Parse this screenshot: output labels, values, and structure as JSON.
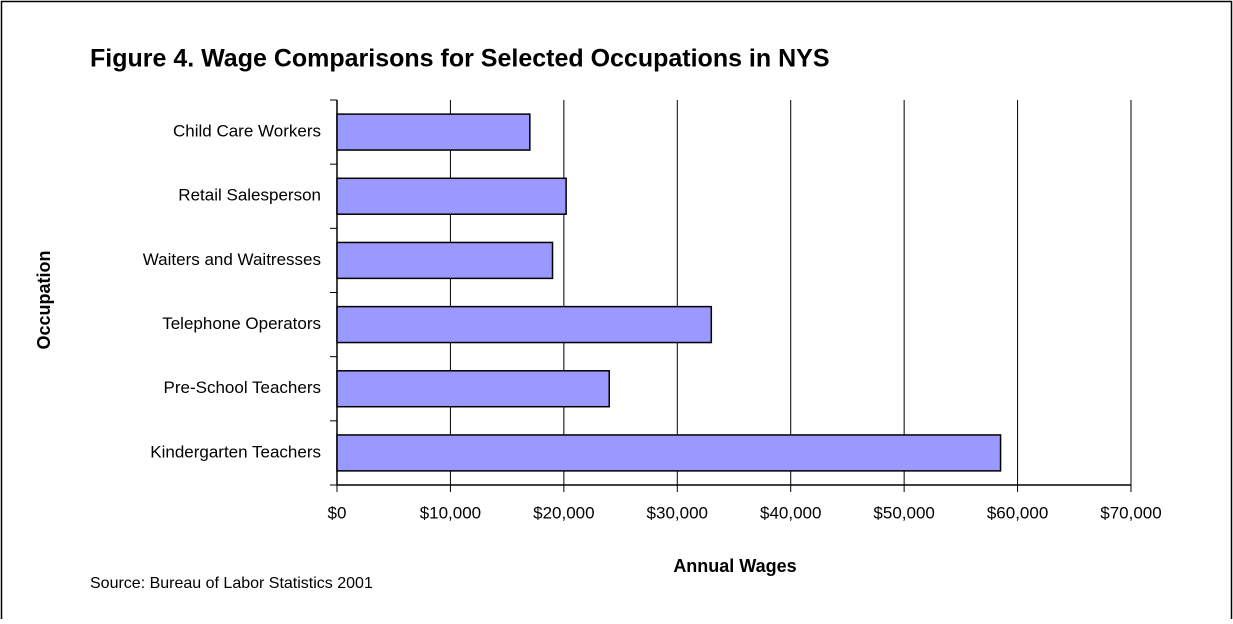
{
  "chart_data": {
    "type": "bar",
    "orientation": "horizontal",
    "title": "Figure 4. Wage Comparisons for Selected Occupations in NYS",
    "x_label": "Annual Wages",
    "y_label": "Occupation",
    "source": "Source: Bureau of Labor Statistics 2001",
    "categories": [
      "Child Care Workers",
      "Retail Salesperson",
      "Waiters and Waitresses",
      "Telephone Operators",
      "Pre-School Teachers",
      "Kindergarten Teachers"
    ],
    "values": [
      17000,
      20200,
      19000,
      33000,
      24000,
      58500
    ],
    "color": "#9999ff",
    "xlim": [
      0,
      70000
    ],
    "xticks": [
      {
        "value": 0,
        "label": "$0"
      },
      {
        "value": 10000,
        "label": "$10,000"
      },
      {
        "value": 20000,
        "label": "$20,000"
      },
      {
        "value": 30000,
        "label": "$30,000"
      },
      {
        "value": 40000,
        "label": "$40,000"
      },
      {
        "value": 50000,
        "label": "$50,000"
      },
      {
        "value": 60000,
        "label": "$60,000"
      },
      {
        "value": 70000,
        "label": "$70,000"
      }
    ],
    "grid": true
  }
}
